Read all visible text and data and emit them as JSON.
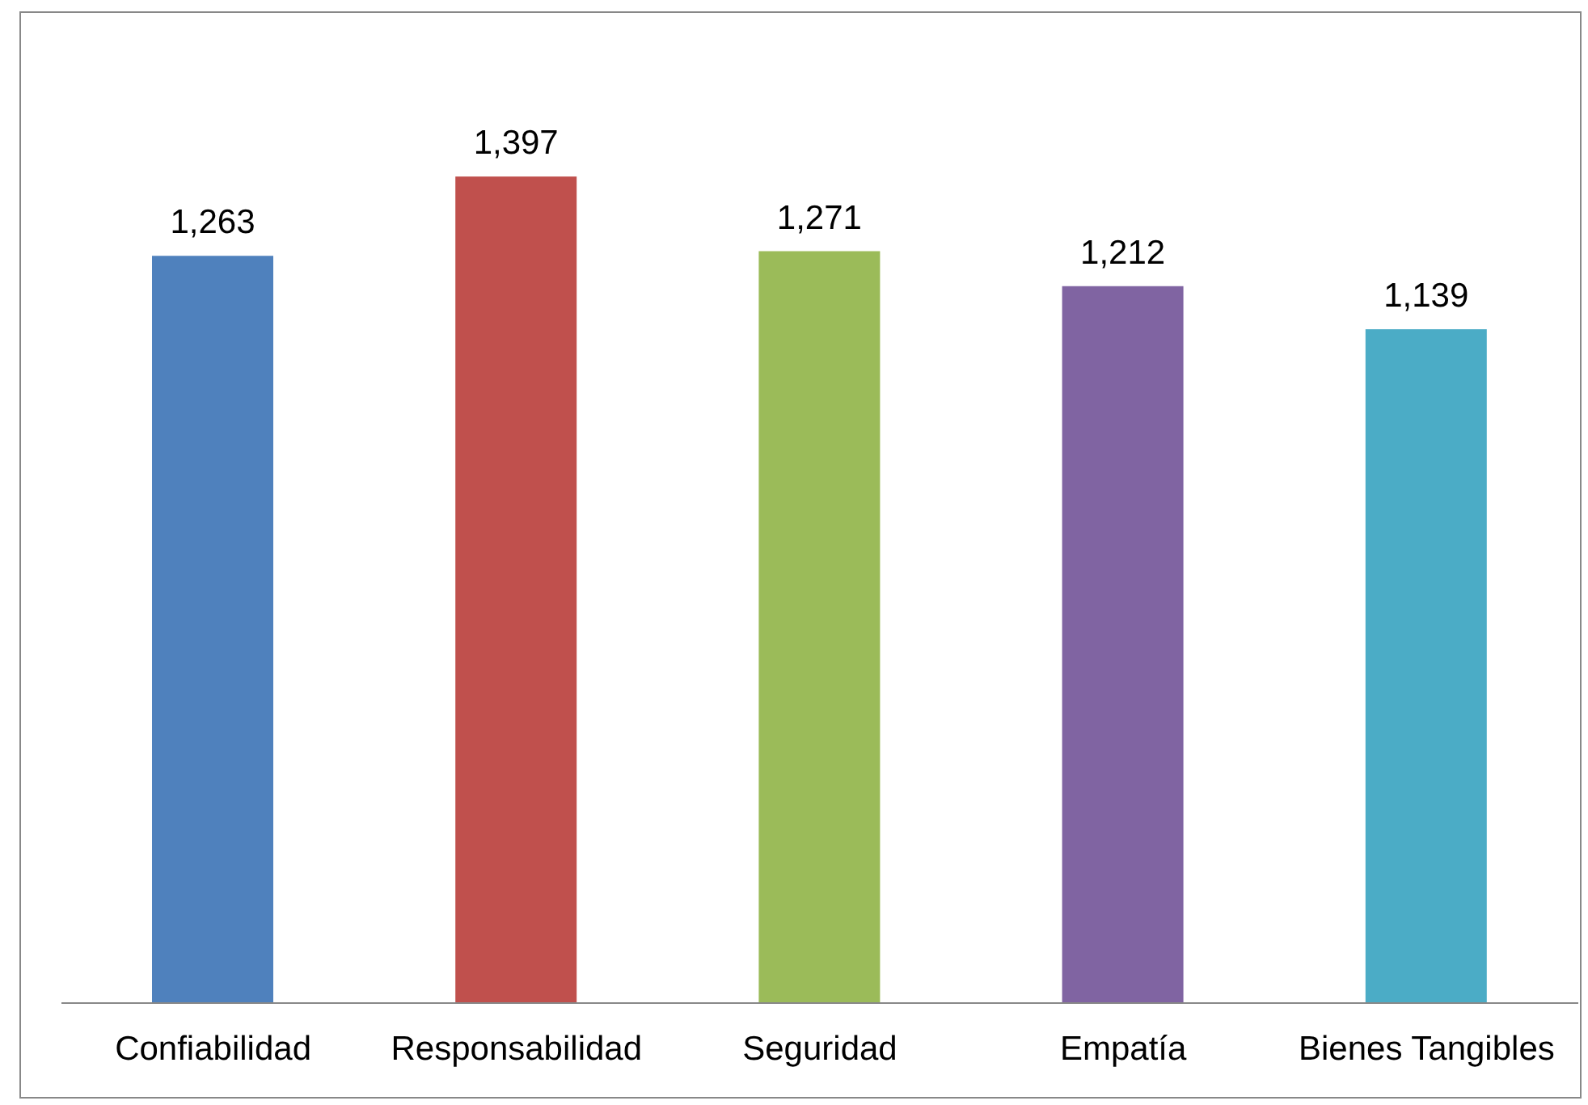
{
  "chart_data": {
    "type": "bar",
    "categories": [
      "Confiabilidad",
      "Responsabilidad",
      "Seguridad",
      "Empatía",
      "Bienes Tangibles"
    ],
    "values": [
      1263,
      1397,
      1271,
      1212,
      1139
    ],
    "colors": [
      "#4f81bd",
      "#c0504d",
      "#9bbb59",
      "#8064a2",
      "#4bacc6"
    ],
    "value_labels": [
      "1,263",
      "1,397",
      "1,271",
      "1,212",
      "1,139"
    ],
    "grid": false
  }
}
